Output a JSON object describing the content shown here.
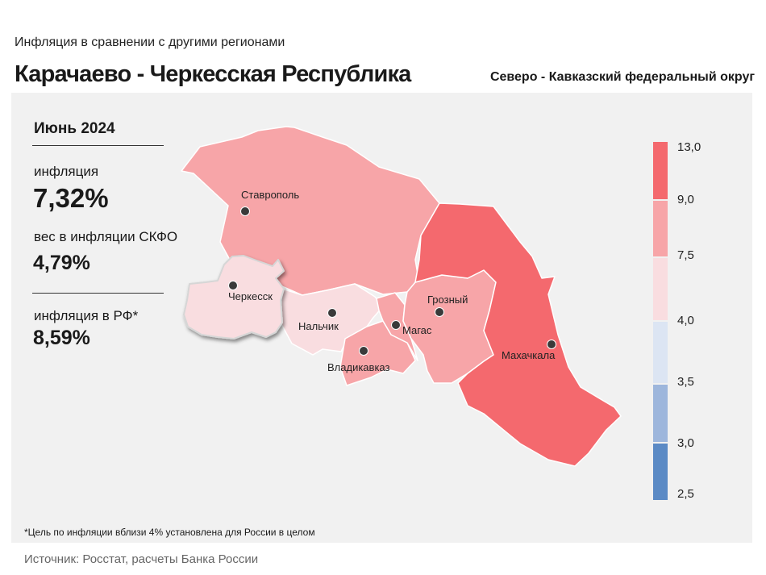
{
  "header": {
    "subtitle": "Инфляция в сравнении с другими регионами",
    "title": "Карачаево - Черкесская Республика",
    "district": "Северо - Кавказский федеральный округ"
  },
  "stats": {
    "period": "Июнь 2024",
    "inflation_label": "инфляция",
    "inflation_value": "7,32%",
    "weight_label": "вес в инфляции СКФО",
    "weight_value": "4,79%",
    "rf_label": "инфляция в РФ*",
    "rf_value": "8,59%"
  },
  "footnote": "*Цель по инфляции вблизи 4% установлена для России в целом",
  "source": "Источник: Росстат, расчеты Банка России",
  "map": {
    "highlighted_region": "Карачаево-Черкесская Республика",
    "regions": [
      {
        "key": "stavropol",
        "city": "Ставрополь",
        "class": "7,5–9,0",
        "color": "#f7a5a8"
      },
      {
        "key": "kchr",
        "city": "Черкесск",
        "class": "4,0–7,5",
        "color": "#f9dde0"
      },
      {
        "key": "kbr",
        "city": "Нальчик",
        "class": "4,0–7,5",
        "color": "#f9dde0"
      },
      {
        "key": "ossetia",
        "city": "Владикавказ",
        "class": "7,5–9,0",
        "color": "#f7a5a8"
      },
      {
        "key": "ingushetia",
        "city": "Магас",
        "class": "7,5–9,0",
        "color": "#f7a5a8"
      },
      {
        "key": "chechnya",
        "city": "Грозный",
        "class": "7,5–9,0",
        "color": "#f7a5a8"
      },
      {
        "key": "dagestan",
        "city": "Махачкала",
        "class": "9,0–13,0",
        "color": "#f4696e"
      }
    ]
  },
  "legend": {
    "ticks": [
      "13,0",
      "9,0",
      "7,5",
      "4,0",
      "3,5",
      "3,0",
      "2,5"
    ],
    "bands": [
      {
        "range": "9,0–13,0",
        "color": "#f4696e"
      },
      {
        "range": "7,5–9,0",
        "color": "#f7a5a8"
      },
      {
        "range": "4,0–7,5",
        "color": "#f9dde0"
      },
      {
        "range": "3,5–4,0",
        "color": "#dce5f3"
      },
      {
        "range": "3,0–3,5",
        "color": "#9db6dc"
      },
      {
        "range": "2,5–3,0",
        "color": "#5b8ac5"
      }
    ]
  }
}
